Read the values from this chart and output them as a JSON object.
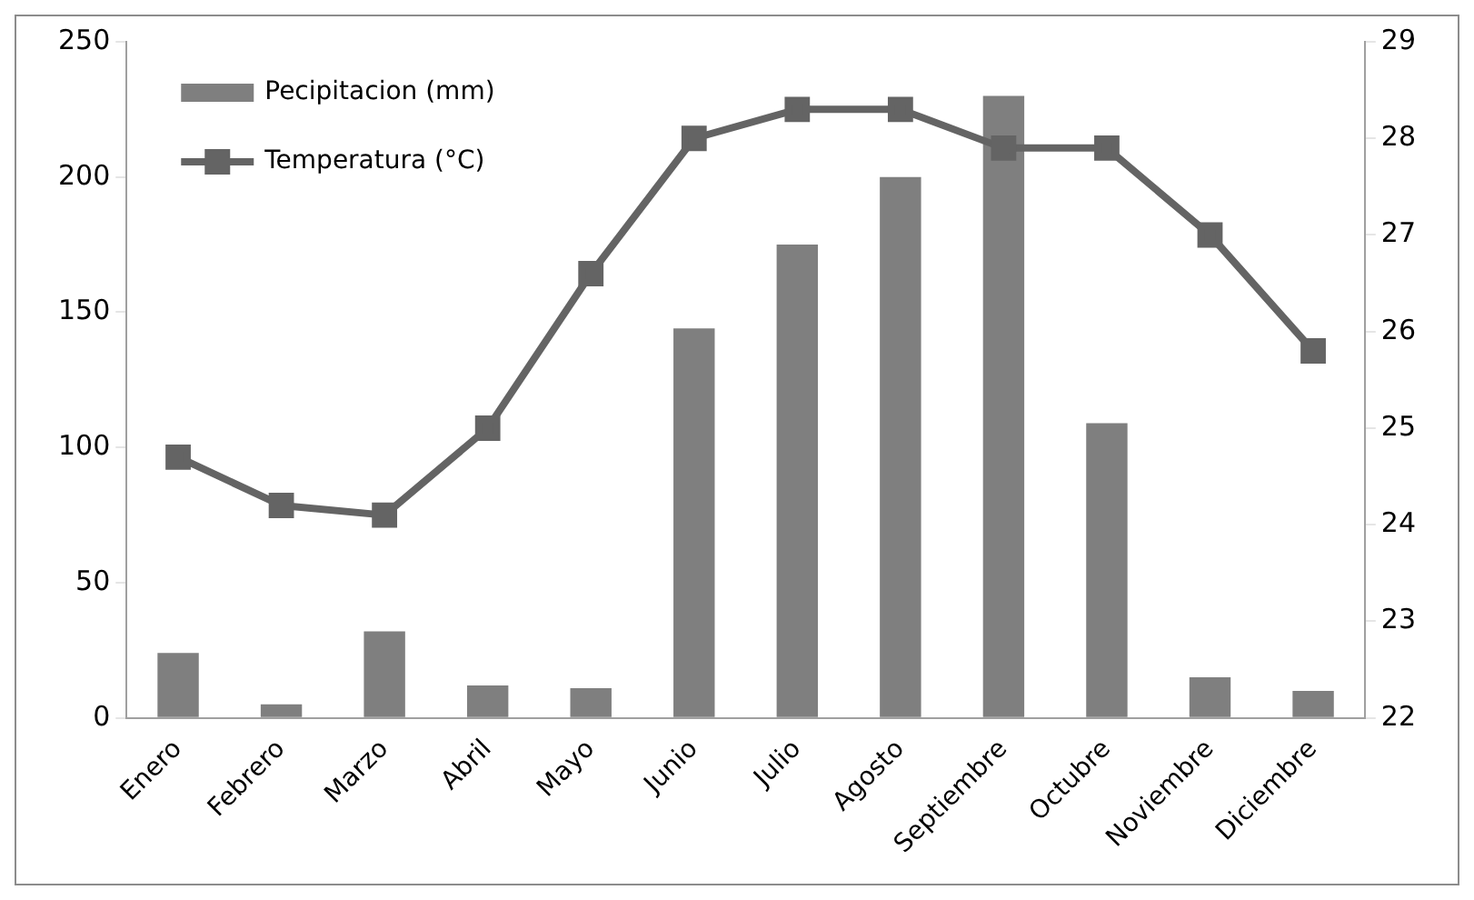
{
  "chart_data": {
    "type": "bar",
    "categories": [
      "Enero",
      "Febrero",
      "Marzo",
      "Abril",
      "Mayo",
      "Junio",
      "Julio",
      "Agosto",
      "Septiembre",
      "Octubre",
      "Noviembre",
      "Diciembre"
    ],
    "series": [
      {
        "name": "Pecipitacion (mm)",
        "color": "#7f7f7f",
        "values": [
          24,
          5,
          32,
          12,
          11,
          144,
          175,
          200,
          230,
          109,
          15,
          10
        ]
      },
      {
        "name": "Temperatura (°C)",
        "type": "line",
        "axis": "y2",
        "color": "#646464",
        "marker": "square",
        "values": [
          24.7,
          24.2,
          24.1,
          25.0,
          26.6,
          28.0,
          28.3,
          28.3,
          27.9,
          27.9,
          27.0,
          25.8
        ]
      }
    ],
    "ylim": [
      0,
      250
    ],
    "yticks": [
      0,
      50,
      100,
      150,
      200,
      250
    ],
    "y2lim": [
      22,
      29
    ],
    "y2ticks": [
      22,
      23,
      24,
      25,
      26,
      27,
      28,
      29
    ],
    "grid": false,
    "legend": "top left"
  }
}
